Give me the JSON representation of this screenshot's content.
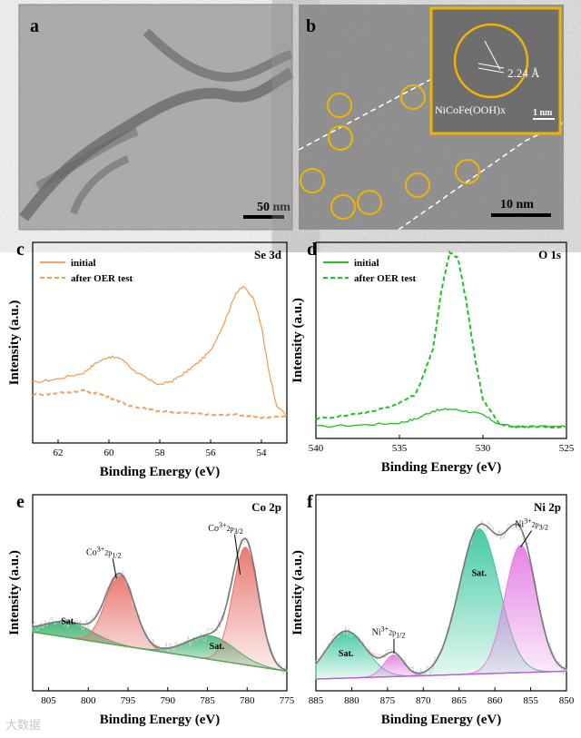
{
  "figure": {
    "panels": {
      "a": {
        "letter": "a",
        "scale_bar": "50 nm"
      },
      "b": {
        "letter": "b",
        "scale_bar": "10 nm",
        "inset_label": "NiCoFe(OOH)x",
        "lattice_spacing": "2.24 Å",
        "inset_scale": "1 nm"
      },
      "c": {
        "letter": "c",
        "element": "Se 3d",
        "legend": [
          "initial",
          "after OER test"
        ]
      },
      "d": {
        "letter": "d",
        "element": "O 1s",
        "legend": [
          "initial",
          "after OER test"
        ]
      },
      "e": {
        "letter": "e",
        "element": "Co 2p"
      },
      "f": {
        "letter": "f",
        "element": "Ni 2p"
      }
    },
    "watermark": "大数据"
  },
  "chart_data": [
    {
      "id": "c",
      "type": "line",
      "title": "Se 3d",
      "xlabel": "Binding Energy (eV)",
      "ylabel": "Intensity (a.u.)",
      "xlim": [
        63,
        53
      ],
      "ylim": [
        0,
        1
      ],
      "xticks": [
        62,
        60,
        58,
        56,
        54
      ],
      "series": [
        {
          "name": "initial",
          "style": "solid",
          "color": "#f0a060",
          "x": [
            63,
            62,
            61,
            60.5,
            60,
            59.5,
            59,
            58.5,
            58,
            57.5,
            57,
            56.5,
            56,
            55.5,
            55,
            54.7,
            54.3,
            54,
            53.7,
            53.4,
            53
          ],
          "y": [
            0.3,
            0.32,
            0.35,
            0.4,
            0.43,
            0.42,
            0.36,
            0.32,
            0.29,
            0.31,
            0.35,
            0.4,
            0.46,
            0.59,
            0.75,
            0.78,
            0.72,
            0.58,
            0.35,
            0.18,
            0.14
          ]
        },
        {
          "name": "after OER test",
          "style": "dashed",
          "color": "#f0a060",
          "x": [
            63,
            62,
            61,
            60.5,
            60,
            59.5,
            59,
            58,
            57,
            56,
            55,
            54,
            53
          ],
          "y": [
            0.24,
            0.25,
            0.26,
            0.25,
            0.23,
            0.2,
            0.18,
            0.16,
            0.15,
            0.14,
            0.14,
            0.13,
            0.13
          ]
        }
      ]
    },
    {
      "id": "d",
      "type": "line",
      "title": "O 1s",
      "xlabel": "Binding Energy (eV)",
      "ylabel": "Intensity (a.u.)",
      "xlim": [
        540,
        525
      ],
      "ylim": [
        0,
        1
      ],
      "xticks": [
        540,
        535,
        530,
        525
      ],
      "series": [
        {
          "name": "initial",
          "style": "solid",
          "color": "#22c122",
          "x": [
            540,
            537,
            535,
            534,
            533,
            532,
            531,
            530,
            529,
            528,
            527,
            525
          ],
          "y": [
            0.06,
            0.07,
            0.08,
            0.1,
            0.14,
            0.15,
            0.14,
            0.12,
            0.07,
            0.06,
            0.06,
            0.06
          ]
        },
        {
          "name": "after OER test",
          "style": "dashed",
          "color": "#22c122",
          "x": [
            540,
            538,
            536,
            535,
            534,
            533,
            532.5,
            532,
            531.5,
            531,
            530.5,
            530,
            529,
            528,
            527,
            525
          ],
          "y": [
            0.1,
            0.12,
            0.15,
            0.18,
            0.23,
            0.45,
            0.75,
            0.95,
            0.92,
            0.7,
            0.42,
            0.2,
            0.07,
            0.06,
            0.06,
            0.06
          ]
        }
      ]
    },
    {
      "id": "e",
      "type": "line",
      "title": "Co 2p",
      "xlabel": "Binding Energy (eV)",
      "ylabel": "Intensity (a.u.)",
      "xlim": [
        807,
        775
      ],
      "ylim": [
        0,
        1
      ],
      "xticks": [
        805,
        800,
        795,
        790,
        785,
        780,
        775
      ],
      "peaks": [
        {
          "label": "Sat.",
          "center": 802.5,
          "height": 0.08,
          "width": 3.0,
          "color": "#3cb371"
        },
        {
          "label": "Co3+2p1/2",
          "center": 796.0,
          "height": 0.36,
          "width": 1.8,
          "color": "#e8736b"
        },
        {
          "label": "Sat.",
          "center": 784.5,
          "height": 0.12,
          "width": 3.0,
          "color": "#3cb371"
        },
        {
          "label": "Co3+2p3/2",
          "center": 780.2,
          "height": 0.6,
          "width": 1.6,
          "color": "#e8736b"
        }
      ],
      "baseline": {
        "x": [
          807,
          775
        ],
        "y": [
          0.3,
          0.1
        ]
      }
    },
    {
      "id": "f",
      "type": "line",
      "title": "Ni 2p",
      "xlabel": "Binding Energy (eV)",
      "ylabel": "Intensity (a.u.)",
      "xlim": [
        885,
        850
      ],
      "ylim": [
        0,
        1
      ],
      "xticks": [
        885,
        880,
        875,
        870,
        865,
        860,
        855,
        850
      ],
      "peaks": [
        {
          "label": "Sat.",
          "center": 880.8,
          "height": 0.24,
          "width": 2.8,
          "color": "#3cc7a0"
        },
        {
          "label": "Ni3+2p1/2",
          "center": 874.1,
          "height": 0.11,
          "width": 1.4,
          "color": "#e47de3"
        },
        {
          "label": "Sat.",
          "center": 862.2,
          "height": 0.74,
          "width": 2.8,
          "color": "#3cc7a0"
        },
        {
          "label": "Ni3+2p3/2",
          "center": 856.4,
          "height": 0.65,
          "width": 2.2,
          "color": "#e47de3"
        }
      ],
      "baseline": {
        "x": [
          885,
          850
        ],
        "y": [
          0.06,
          0.1
        ]
      }
    }
  ]
}
